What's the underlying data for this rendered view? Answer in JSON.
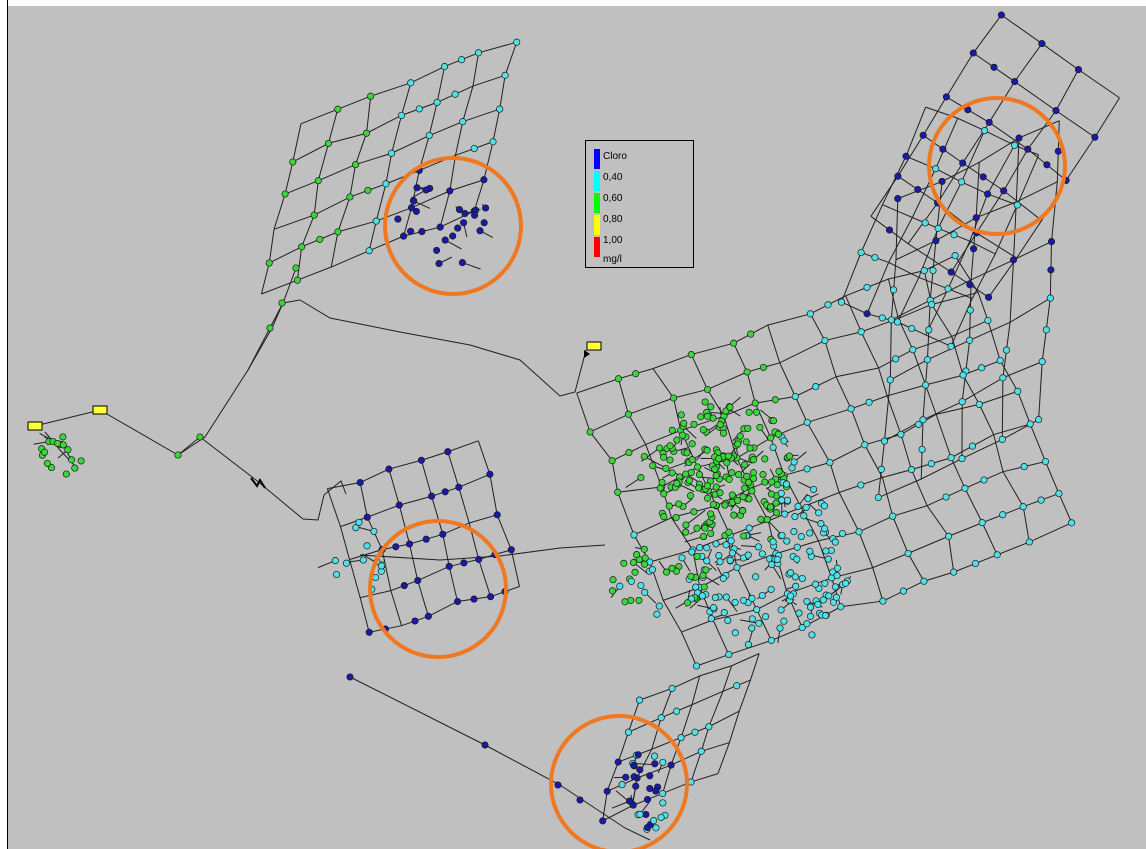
{
  "legend": {
    "title": "Cloro",
    "ticks": [
      "0,40",
      "0,60",
      "0,80",
      "1,00"
    ],
    "unit": "mg/l",
    "colors": [
      "#0000ff",
      "#00ffff",
      "#00ff00",
      "#ffff00",
      "#ff0000"
    ]
  },
  "node_colors": {
    "low": "#1a1aa8",
    "mid": "#4fe0e8",
    "high": "#3ad63a",
    "tank": "#ffff33"
  },
  "highlight_color": "#f07820"
}
